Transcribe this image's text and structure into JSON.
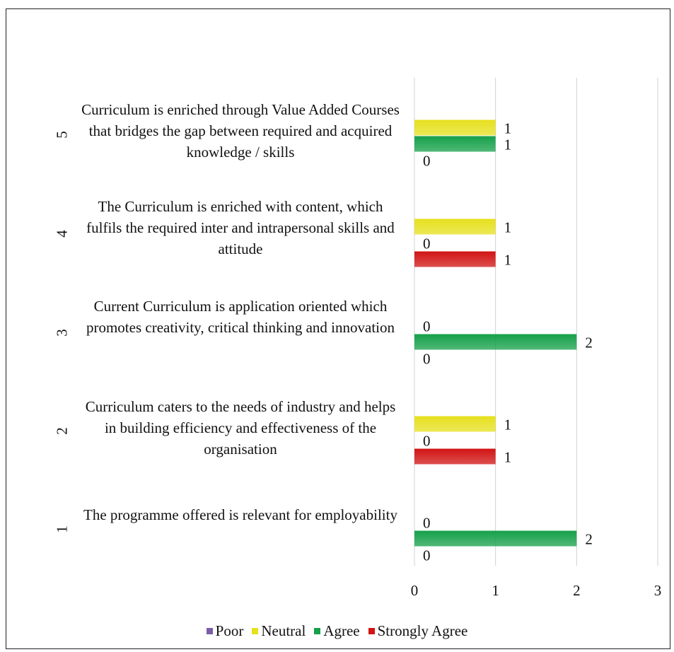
{
  "chart_data": {
    "type": "bar",
    "orientation": "horizontal",
    "categories": [
      {
        "number": "1",
        "label": "The programme offered is relevant for employability"
      },
      {
        "number": "2",
        "label": "Curriculum caters to the needs of industry and helps in building efficiency and effectiveness of the organisation"
      },
      {
        "number": "3",
        "label": "Current Curriculum is application oriented which promotes creativity, critical thinking and innovation"
      },
      {
        "number": "4",
        "label": "The Curriculum is enriched with content, which fulfils the required inter and intrapersonal skills and attitude"
      },
      {
        "number": "5",
        "label": "Curriculum is enriched through Value Added Courses that bridges the gap between required and acquired knowledge / skills"
      }
    ],
    "series": [
      {
        "name": "Poor",
        "color": "#7b5ea7",
        "values": [
          null,
          null,
          null,
          null,
          null
        ],
        "labels": [
          "",
          "",
          "",
          "",
          ""
        ]
      },
      {
        "name": "Neutral",
        "color": "#e6e01e",
        "values": [
          0,
          1,
          0,
          1,
          1
        ],
        "labels": [
          "0",
          "1",
          "0",
          "1",
          "1"
        ]
      },
      {
        "name": "Agree",
        "color": "#16a04a",
        "values": [
          2,
          0,
          2,
          0,
          1
        ],
        "labels": [
          "2",
          "0",
          "2",
          "0",
          "1"
        ]
      },
      {
        "name": "Strongly Agree",
        "color": "#d11414",
        "values": [
          0,
          1,
          0,
          1,
          0
        ],
        "labels": [
          "0",
          "1",
          "0",
          "1",
          "0"
        ]
      }
    ],
    "x_ticks": [
      "0",
      "1",
      "2",
      "3"
    ],
    "xlim": [
      0,
      3
    ],
    "grid": true,
    "legend": "bottom"
  }
}
